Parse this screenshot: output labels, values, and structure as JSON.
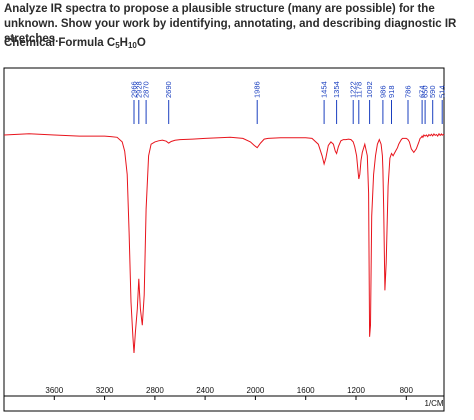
{
  "question": {
    "text": "Analyze IR spectra to propose a plausible structure (many are possible) for the unknown. Show your work by identifying, annotating, and describing diagnostic IR stretches."
  },
  "formula": {
    "label": "Chemical Formula C",
    "c_count": "5",
    "h_mid": "H",
    "h_count": "10",
    "o_part": "O"
  },
  "chart_data": {
    "type": "line",
    "xlabel": "1/CM",
    "ylabel": "",
    "xlim": [
      4000,
      500
    ],
    "x_reversed": true,
    "x_ticks": [
      3600,
      3200,
      2800,
      2400,
      2000,
      1600,
      1200,
      800
    ],
    "peak_labels": [
      "2966",
      "2928",
      "2870",
      "2690",
      "1986",
      "1454",
      "1354",
      "1222",
      "1178",
      "1092",
      "986",
      "918",
      "786",
      "674",
      "650",
      "590",
      "514"
    ],
    "peak_positions": [
      2966,
      2928,
      2870,
      2690,
      1986,
      1454,
      1354,
      1222,
      1178,
      1092,
      986,
      918,
      786,
      674,
      650,
      590,
      514
    ],
    "series": [
      {
        "color": "#e8141c",
        "x": [
          4000,
          3800,
          3600,
          3400,
          3300,
          3200,
          3150,
          3100,
          3060,
          3040,
          3020,
          3005,
          2990,
          2975,
          2966,
          2955,
          2940,
          2928,
          2915,
          2900,
          2885,
          2870,
          2850,
          2830,
          2800,
          2770,
          2740,
          2710,
          2690,
          2670,
          2640,
          2600,
          2500,
          2400,
          2200,
          2100,
          2040,
          2010,
          1986,
          1960,
          1930,
          1900,
          1800,
          1700,
          1600,
          1550,
          1500,
          1470,
          1454,
          1440,
          1420,
          1400,
          1380,
          1365,
          1354,
          1340,
          1320,
          1300,
          1280,
          1260,
          1240,
          1222,
          1210,
          1195,
          1185,
          1178,
          1170,
          1160,
          1150,
          1130,
          1110,
          1100,
          1092,
          1085,
          1075,
          1060,
          1045,
          1030,
          1015,
          1000,
          990,
          986,
          980,
          970,
          960,
          945,
          930,
          918,
          905,
          895,
          880,
          870,
          860,
          850,
          840,
          830,
          820,
          810,
          800,
          786,
          775,
          760,
          740,
          720,
          700,
          690,
          680,
          674,
          668,
          660,
          650,
          640,
          630,
          620,
          610,
          600,
          590,
          580,
          570,
          560,
          550,
          540,
          530,
          520,
          514,
          505,
          500
        ],
        "y": [
          97,
          97.5,
          97,
          96.5,
          96.5,
          96.5,
          96.3,
          96,
          94,
          90,
          80,
          55,
          25,
          10,
          3,
          12,
          22,
          35,
          22,
          15,
          28,
          65,
          88,
          93,
          94,
          94.5,
          94.8,
          94.3,
          93.5,
          94.2,
          94.7,
          95,
          95.2,
          95.5,
          96,
          95.5,
          94,
          92.5,
          91.5,
          93.5,
          95.2,
          95.5,
          95.8,
          95.8,
          95.8,
          95.5,
          93,
          88,
          84.5,
          87,
          92.5,
          94,
          93,
          90,
          89,
          92,
          94.5,
          95,
          95,
          95.2,
          95,
          94,
          92,
          88,
          82,
          78,
          80,
          86,
          89.5,
          93,
          88,
          72,
          10,
          15,
          62,
          80,
          88,
          93,
          95,
          93,
          88,
          82,
          65,
          30,
          42,
          75,
          87,
          89,
          88,
          89,
          90.5,
          91.5,
          93,
          94,
          95,
          95.5,
          95.5,
          95.5,
          95.5,
          95,
          94,
          91,
          89.5,
          91,
          94,
          95.5,
          96,
          96.5,
          96,
          97,
          96.5,
          97,
          96.3,
          97.2,
          96.7,
          97.3,
          96.6,
          97.4,
          96.8,
          97.2,
          96.5,
          97.5,
          96.8,
          97.4,
          96.9,
          97.2,
          97
        ]
      }
    ],
    "grid": false,
    "legend": "none"
  }
}
